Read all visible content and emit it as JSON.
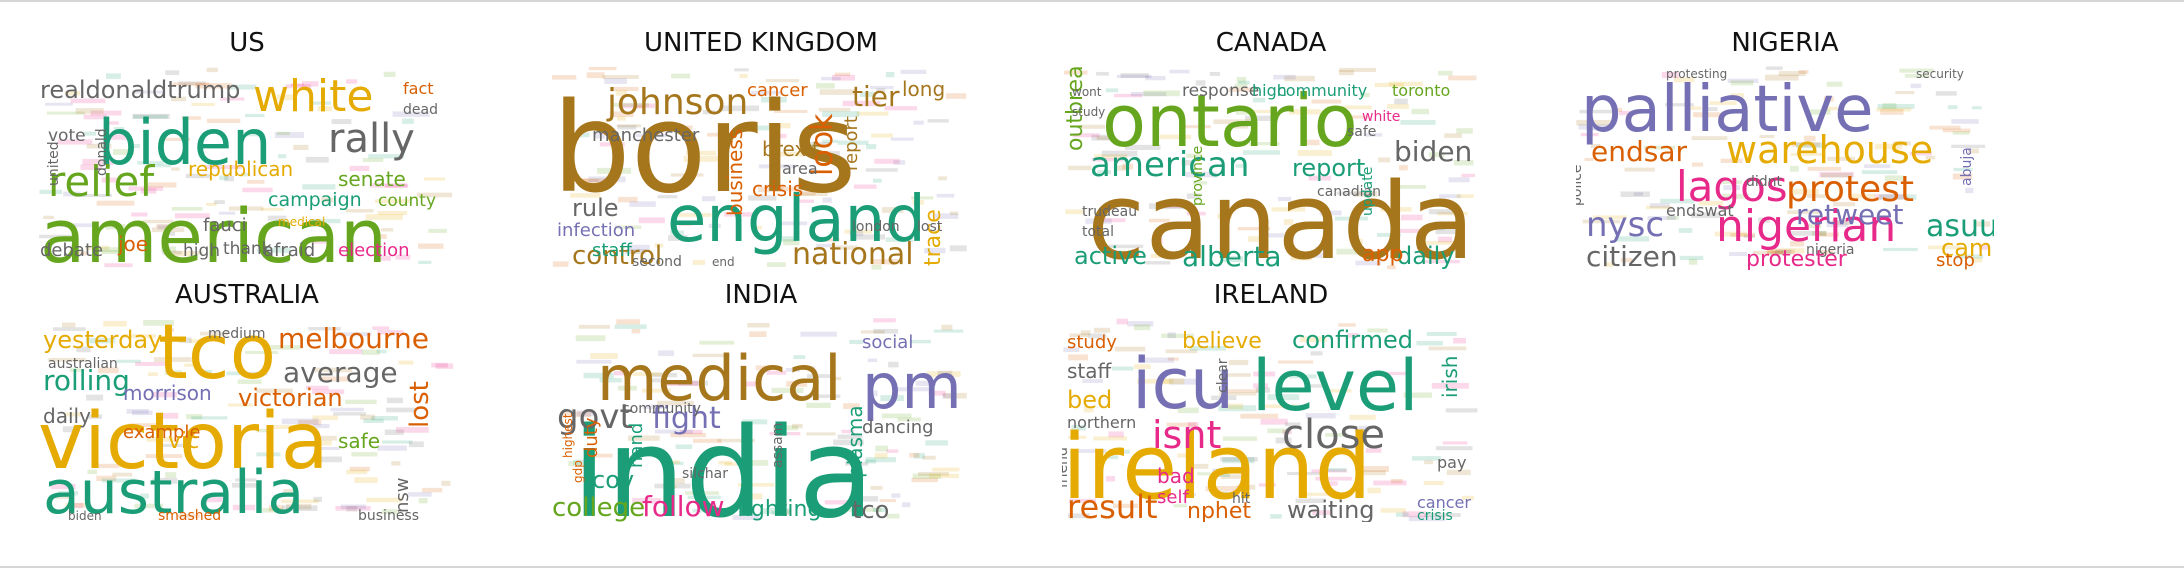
{
  "panels": [
    {
      "title": "US",
      "words": [
        {
          "t": "american",
          "c": "#66a61e"
        },
        {
          "t": "biden",
          "c": "#1b9e77"
        },
        {
          "t": "white",
          "c": "#e6ab02"
        },
        {
          "t": "relief",
          "c": "#66a61e"
        },
        {
          "t": "rally",
          "c": "#666666"
        },
        {
          "t": "realdonaldtrump",
          "c": "#666666"
        },
        {
          "t": "republican",
          "c": "#e6ab02"
        },
        {
          "t": "senate",
          "c": "#66a61e"
        },
        {
          "t": "campaign",
          "c": "#1b9e77"
        },
        {
          "t": "county",
          "c": "#66a61e"
        },
        {
          "t": "fauci",
          "c": "#666666"
        },
        {
          "t": "afraid",
          "c": "#666666"
        },
        {
          "t": "election",
          "c": "#e7298a"
        },
        {
          "t": "debate",
          "c": "#666666"
        },
        {
          "t": "joe",
          "c": "#d95f02"
        },
        {
          "t": "high",
          "c": "#666666"
        },
        {
          "t": "thank",
          "c": "#666666"
        },
        {
          "t": "vote",
          "c": "#666666"
        },
        {
          "t": "fact",
          "c": "#d95f02"
        },
        {
          "t": "dead",
          "c": "#666666"
        },
        {
          "t": "united",
          "c": "#666666"
        },
        {
          "t": "donald",
          "c": "#666666"
        },
        {
          "t": "medical",
          "c": "#e6ab02"
        }
      ]
    },
    {
      "title": "UNITED KINGDOM",
      "words": [
        {
          "t": "boris",
          "c": "#a6761d"
        },
        {
          "t": "england",
          "c": "#1b9e77"
        },
        {
          "t": "johnson",
          "c": "#a6761d"
        },
        {
          "t": "tier",
          "c": "#a6761d"
        },
        {
          "t": "look",
          "c": "#d95f02"
        },
        {
          "t": "brexit",
          "c": "#a6761d"
        },
        {
          "t": "crisis",
          "c": "#d95f02"
        },
        {
          "t": "national",
          "c": "#a6761d"
        },
        {
          "t": "control",
          "c": "#a6761d"
        },
        {
          "t": "rule",
          "c": "#666666"
        },
        {
          "t": "infection",
          "c": "#7570b3"
        },
        {
          "t": "staff",
          "c": "#1b9e77"
        },
        {
          "t": "manchester",
          "c": "#666666"
        },
        {
          "t": "cancer",
          "c": "#d95f02"
        },
        {
          "t": "long",
          "c": "#a6761d"
        },
        {
          "t": "area",
          "c": "#666666"
        },
        {
          "t": "business",
          "c": "#d95f02"
        },
        {
          "t": "trace",
          "c": "#e6ab02"
        },
        {
          "t": "report",
          "c": "#a6761d"
        },
        {
          "t": "london",
          "c": "#666666"
        },
        {
          "t": "lost",
          "c": "#666666"
        },
        {
          "t": "second",
          "c": "#666666"
        },
        {
          "t": "end",
          "c": "#666666"
        }
      ]
    },
    {
      "title": "CANADA",
      "words": [
        {
          "t": "canada",
          "c": "#a6761d"
        },
        {
          "t": "ontario",
          "c": "#66a61e"
        },
        {
          "t": "american",
          "c": "#1b9e77"
        },
        {
          "t": "report",
          "c": "#1b9e77"
        },
        {
          "t": "biden",
          "c": "#666666"
        },
        {
          "t": "alberta",
          "c": "#1b9e77"
        },
        {
          "t": "active",
          "c": "#1b9e77"
        },
        {
          "t": "daily",
          "c": "#1b9e77"
        },
        {
          "t": "app",
          "c": "#d95f02"
        },
        {
          "t": "outbreak",
          "c": "#66a61e"
        },
        {
          "t": "response",
          "c": "#666666"
        },
        {
          "t": "high",
          "c": "#1b9e77"
        },
        {
          "t": "community",
          "c": "#1b9e77"
        },
        {
          "t": "toronto",
          "c": "#66a61e"
        },
        {
          "t": "white",
          "c": "#e7298a"
        },
        {
          "t": "safe",
          "c": "#666666"
        },
        {
          "t": "canadian",
          "c": "#666666"
        },
        {
          "t": "trudeau",
          "c": "#666666"
        },
        {
          "t": "province",
          "c": "#66a61e"
        },
        {
          "t": "total",
          "c": "#666666"
        },
        {
          "t": "study",
          "c": "#666666"
        },
        {
          "t": "wont",
          "c": "#666666"
        },
        {
          "t": "update",
          "c": "#1b9e77"
        }
      ]
    },
    {
      "title": "NIGERIA",
      "words": [
        {
          "t": "palliative",
          "c": "#7570b3"
        },
        {
          "t": "warehouse",
          "c": "#e6ab02"
        },
        {
          "t": "endsar",
          "c": "#d95f02"
        },
        {
          "t": "lagos",
          "c": "#e7298a"
        },
        {
          "t": "protest",
          "c": "#d95f02"
        },
        {
          "t": "nigerian",
          "c": "#e7298a"
        },
        {
          "t": "retweet",
          "c": "#7570b3"
        },
        {
          "t": "nysc",
          "c": "#7570b3"
        },
        {
          "t": "asuu",
          "c": "#1b9e77"
        },
        {
          "t": "camp",
          "c": "#e6ab02"
        },
        {
          "t": "citizen",
          "c": "#666666"
        },
        {
          "t": "protester",
          "c": "#e7298a"
        },
        {
          "t": "stop",
          "c": "#d95f02"
        },
        {
          "t": "endswat",
          "c": "#666666"
        },
        {
          "t": "police",
          "c": "#666666"
        },
        {
          "t": "nigeria",
          "c": "#666666"
        },
        {
          "t": "didnt",
          "c": "#666666"
        },
        {
          "t": "abuja",
          "c": "#7570b3"
        },
        {
          "t": "security",
          "c": "#666666"
        },
        {
          "t": "protesting",
          "c": "#666666"
        }
      ]
    },
    {
      "title": "AUSTRALIA",
      "words": [
        {
          "t": "victoria",
          "c": "#e6ab02"
        },
        {
          "t": "australia",
          "c": "#1b9e77"
        },
        {
          "t": "tco",
          "c": "#e6ab02"
        },
        {
          "t": "melbourne",
          "c": "#d95f02"
        },
        {
          "t": "average",
          "c": "#666666"
        },
        {
          "t": "rolling",
          "c": "#1b9e77"
        },
        {
          "t": "victorian",
          "c": "#d95f02"
        },
        {
          "t": "yesterday",
          "c": "#e6ab02"
        },
        {
          "t": "morrison",
          "c": "#7570b3"
        },
        {
          "t": "daily",
          "c": "#666666"
        },
        {
          "t": "lost",
          "c": "#d95f02"
        },
        {
          "t": "safe",
          "c": "#66a61e"
        },
        {
          "t": "nsw",
          "c": "#666666"
        },
        {
          "t": "example",
          "c": "#d95f02"
        },
        {
          "t": "vic",
          "c": "#e6ab02"
        },
        {
          "t": "medium",
          "c": "#666666"
        },
        {
          "t": "australian",
          "c": "#666666"
        },
        {
          "t": "smashed",
          "c": "#d95f02"
        },
        {
          "t": "business",
          "c": "#666666"
        },
        {
          "t": "biden",
          "c": "#666666"
        }
      ]
    },
    {
      "title": "INDIA",
      "words": [
        {
          "t": "india",
          "c": "#1b9e77"
        },
        {
          "t": "medical",
          "c": "#a6761d"
        },
        {
          "t": "pm",
          "c": "#7570b3"
        },
        {
          "t": "govt",
          "c": "#666666"
        },
        {
          "t": "fight",
          "c": "#7570b3"
        },
        {
          "t": "follow",
          "c": "#e7298a"
        },
        {
          "t": "college",
          "c": "#66a61e"
        },
        {
          "t": "fighting",
          "c": "#1b9e77"
        },
        {
          "t": "tco",
          "c": "#666666"
        },
        {
          "t": "plasma",
          "c": "#1b9e77"
        },
        {
          "t": "dancing",
          "c": "#666666"
        },
        {
          "t": "social",
          "c": "#7570b3"
        },
        {
          "t": "duty",
          "c": "#d95f02"
        },
        {
          "t": "highest",
          "c": "#d95f02"
        },
        {
          "t": "cov",
          "c": "#1b9e77"
        },
        {
          "t": "hand",
          "c": "#1b9e77"
        },
        {
          "t": "silchar",
          "c": "#666666"
        },
        {
          "t": "assam",
          "c": "#666666"
        },
        {
          "t": "community",
          "c": "#666666"
        },
        {
          "t": "gdp",
          "c": "#d95f02"
        }
      ]
    },
    {
      "title": "IRELAND",
      "words": [
        {
          "t": "ireland",
          "c": "#e6ab02"
        },
        {
          "t": "icu",
          "c": "#7570b3"
        },
        {
          "t": "level",
          "c": "#1b9e77"
        },
        {
          "t": "close",
          "c": "#666666"
        },
        {
          "t": "isnt",
          "c": "#e7298a"
        },
        {
          "t": "confirmed",
          "c": "#1b9e77"
        },
        {
          "t": "believe",
          "c": "#e6ab02"
        },
        {
          "t": "result",
          "c": "#d95f02"
        },
        {
          "t": "nphet",
          "c": "#d95f02"
        },
        {
          "t": "waiting",
          "c": "#666666"
        },
        {
          "t": "cancer",
          "c": "#7570b3"
        },
        {
          "t": "crisis",
          "c": "#1b9e77"
        },
        {
          "t": "bed",
          "c": "#e6ab02"
        },
        {
          "t": "staff",
          "c": "#666666"
        },
        {
          "t": "study",
          "c": "#d95f02"
        },
        {
          "t": "northern",
          "c": "#666666"
        },
        {
          "t": "bad",
          "c": "#e7298a"
        },
        {
          "t": "self",
          "c": "#e7298a"
        },
        {
          "t": "hit",
          "c": "#666666"
        },
        {
          "t": "irish",
          "c": "#1b9e77"
        },
        {
          "t": "pay",
          "c": "#666666"
        },
        {
          "t": "clear",
          "c": "#666666"
        },
        {
          "t": "friend",
          "c": "#666666"
        }
      ]
    }
  ]
}
